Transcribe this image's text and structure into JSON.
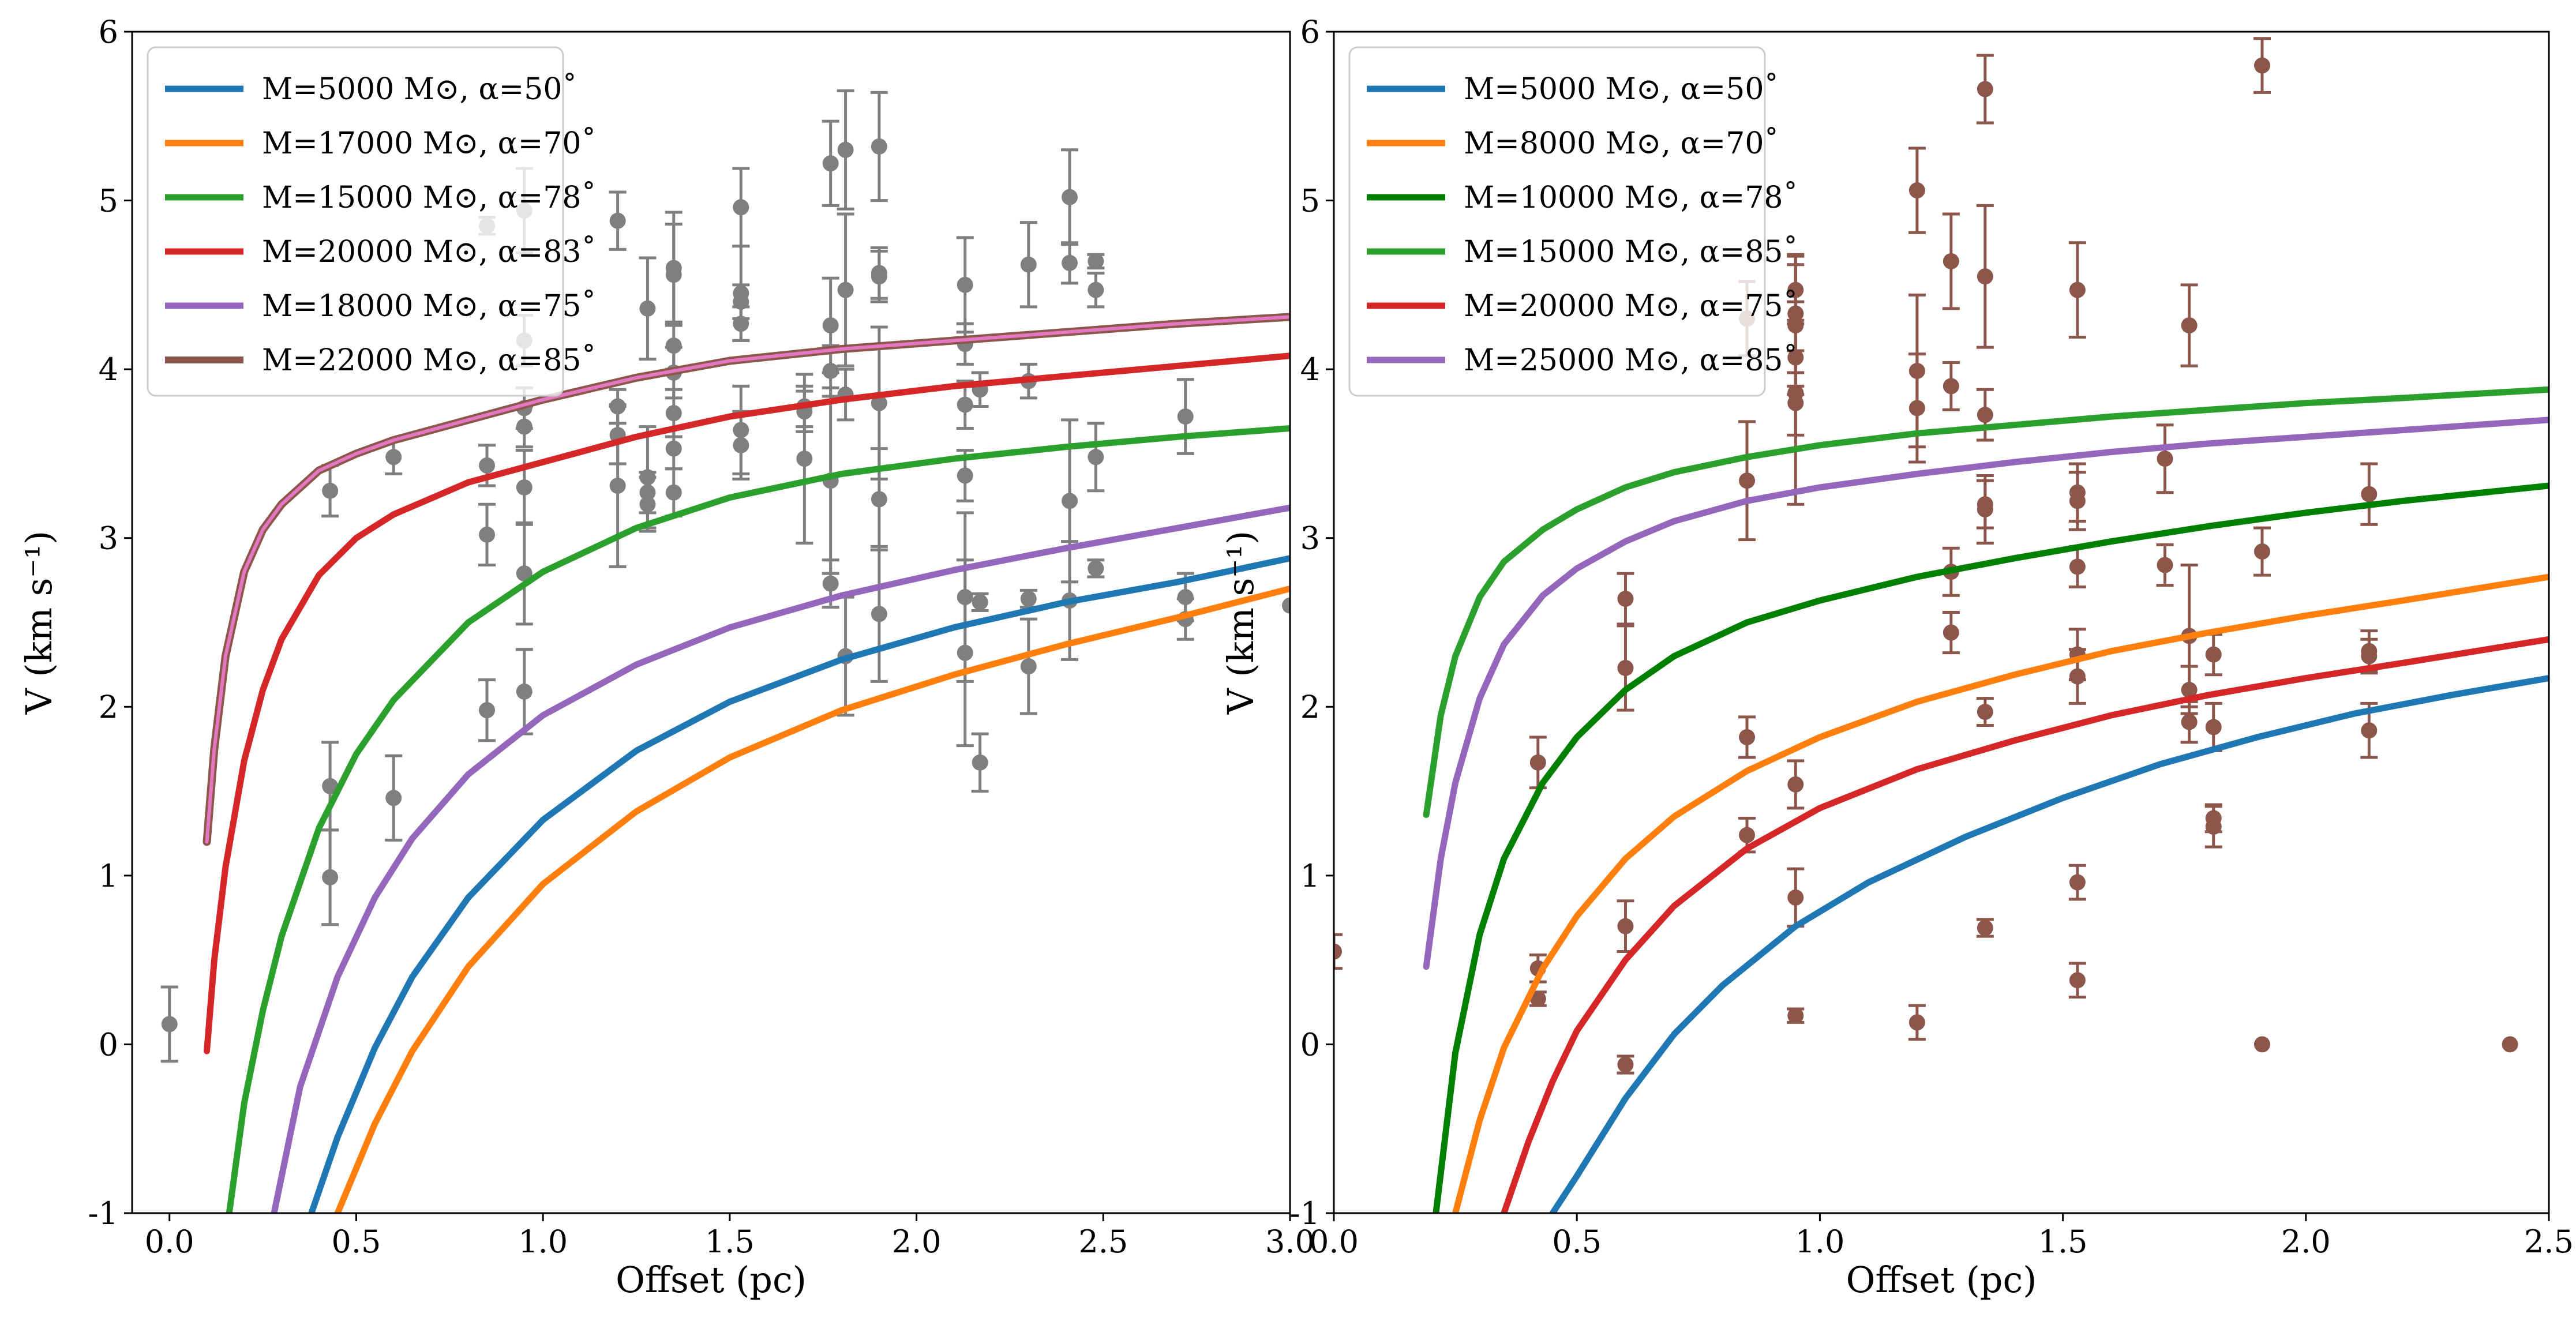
{
  "chart_data": [
    {
      "type": "line",
      "xlabel": "Offset (pc)",
      "ylabel": "V (km s⁻¹)",
      "xlim": [
        -0.1,
        3.0
      ],
      "ylim": [
        -1,
        6
      ],
      "xticks": [
        0.0,
        0.5,
        1.0,
        1.5,
        2.0,
        2.5,
        3.0
      ],
      "xtick_labels": [
        "0.0",
        "0.5",
        "1.0",
        "1.5",
        "2.0",
        "2.5",
        "3.0"
      ],
      "yticks": [
        -1,
        0,
        1,
        2,
        3,
        4,
        5,
        6
      ],
      "ytick_labels": [
        "-1",
        "0",
        "1",
        "2",
        "3",
        "4",
        "5",
        "6"
      ],
      "legend_position": "top-left",
      "series": [
        {
          "name": "M=5000 M⊙, α=50˚",
          "color": "#1f77b4",
          "outline": false,
          "x": [
            0.38,
            0.45,
            0.55,
            0.65,
            0.8,
            1.0,
            1.25,
            1.5,
            1.8,
            2.1,
            2.4,
            2.7,
            3.0
          ],
          "y": [
            -1.0,
            -0.55,
            -0.02,
            0.4,
            0.87,
            1.33,
            1.74,
            2.03,
            2.28,
            2.47,
            2.62,
            2.74,
            2.88
          ]
        },
        {
          "name": "M=17000 M⊙, α=70˚",
          "color": "#ff7f0e",
          "outline": false,
          "x": [
            0.45,
            0.55,
            0.65,
            0.8,
            1.0,
            1.25,
            1.5,
            1.8,
            2.1,
            2.4,
            2.7,
            3.0
          ],
          "y": [
            -1.0,
            -0.47,
            -0.04,
            0.46,
            0.95,
            1.38,
            1.7,
            1.98,
            2.19,
            2.37,
            2.53,
            2.7
          ]
        },
        {
          "name": "M=15000 M⊙, α=78˚",
          "color": "#2ca02c",
          "outline": false,
          "x": [
            0.16,
            0.2,
            0.25,
            0.3,
            0.4,
            0.5,
            0.6,
            0.8,
            1.0,
            1.25,
            1.5,
            1.8,
            2.1,
            2.4,
            2.7,
            3.0
          ],
          "y": [
            -1.0,
            -0.35,
            0.2,
            0.64,
            1.28,
            1.72,
            2.04,
            2.5,
            2.8,
            3.06,
            3.24,
            3.38,
            3.47,
            3.54,
            3.6,
            3.65
          ]
        },
        {
          "name": "M=20000 M⊙, α=83˚",
          "color": "#d62728",
          "outline": false,
          "x": [
            0.1,
            0.12,
            0.15,
            0.2,
            0.25,
            0.3,
            0.4,
            0.5,
            0.6,
            0.8,
            1.0,
            1.25,
            1.5,
            1.8,
            2.1,
            2.4,
            2.7,
            3.0
          ],
          "y": [
            -0.04,
            0.5,
            1.05,
            1.68,
            2.1,
            2.4,
            2.78,
            3.0,
            3.14,
            3.33,
            3.45,
            3.6,
            3.72,
            3.82,
            3.9,
            3.96,
            4.02,
            4.08
          ]
        },
        {
          "name": "M=18000 M⊙, α=75˚",
          "color": "#9467bd",
          "outline": false,
          "x": [
            0.28,
            0.35,
            0.45,
            0.55,
            0.65,
            0.8,
            1.0,
            1.25,
            1.5,
            1.8,
            2.1,
            2.4,
            2.7,
            3.0
          ],
          "y": [
            -1.0,
            -0.25,
            0.4,
            0.87,
            1.22,
            1.6,
            1.95,
            2.25,
            2.47,
            2.66,
            2.81,
            2.94,
            3.06,
            3.18
          ]
        },
        {
          "name": "M=22000 M⊙, α=85˚",
          "color": "#e377c2",
          "outline": true,
          "outline_color": "#8c564b",
          "x": [
            0.1,
            0.12,
            0.15,
            0.2,
            0.25,
            0.3,
            0.4,
            0.5,
            0.6,
            0.8,
            1.0,
            1.25,
            1.5,
            1.8,
            2.1,
            2.4,
            2.7,
            3.0
          ],
          "y": [
            1.2,
            1.75,
            2.3,
            2.8,
            3.05,
            3.2,
            3.4,
            3.5,
            3.58,
            3.7,
            3.82,
            3.95,
            4.05,
            4.12,
            4.17,
            4.22,
            4.27,
            4.31
          ]
        }
      ],
      "points": {
        "color": "#7f7f7f",
        "x": [
          0.0,
          0.43,
          0.43,
          0.43,
          0.6,
          0.6,
          0.85,
          0.85,
          0.85,
          0.85,
          0.95,
          0.95,
          0.95,
          0.95,
          0.95,
          0.95,
          0.95,
          1.2,
          1.2,
          1.2,
          1.2,
          1.28,
          1.28,
          1.28,
          1.28,
          1.35,
          1.35,
          1.35,
          1.35,
          1.35,
          1.35,
          1.35,
          1.53,
          1.53,
          1.53,
          1.53,
          1.53,
          1.53,
          1.7,
          1.7,
          1.7,
          1.77,
          1.77,
          1.77,
          1.77,
          1.77,
          1.81,
          1.81,
          1.81,
          1.81,
          1.9,
          1.9,
          1.9,
          1.9,
          1.9,
          1.9,
          2.13,
          2.13,
          2.13,
          2.13,
          2.13,
          2.13,
          2.17,
          2.17,
          2.17,
          2.3,
          2.3,
          2.3,
          2.3,
          2.41,
          2.41,
          2.41,
          2.41,
          2.48,
          2.48,
          2.48,
          2.48,
          2.72,
          2.72,
          2.72,
          3.0
        ],
        "y": [
          0.12,
          3.28,
          1.53,
          0.99,
          3.48,
          1.46,
          3.43,
          3.02,
          1.98,
          4.85,
          4.94,
          4.17,
          3.77,
          3.66,
          3.3,
          2.79,
          2.09,
          4.88,
          3.78,
          3.61,
          3.31,
          4.36,
          3.36,
          3.27,
          3.2,
          4.6,
          4.56,
          4.14,
          3.98,
          3.74,
          3.53,
          3.27,
          4.96,
          4.45,
          4.4,
          4.27,
          3.64,
          3.55,
          3.78,
          3.75,
          3.47,
          5.22,
          4.26,
          3.99,
          3.34,
          2.73,
          5.3,
          4.47,
          3.85,
          2.3,
          5.32,
          4.57,
          4.55,
          3.8,
          3.23,
          2.55,
          4.5,
          4.15,
          3.79,
          3.37,
          2.65,
          2.32,
          3.88,
          2.62,
          1.67,
          4.62,
          3.93,
          2.64,
          2.24,
          5.02,
          4.63,
          3.22,
          2.63,
          4.64,
          4.47,
          3.48,
          2.82,
          3.72,
          2.65,
          2.52,
          2.6
        ],
        "err": [
          0.22,
          0.15,
          0.26,
          0.28,
          0.1,
          0.25,
          0.12,
          0.18,
          0.18,
          0.05,
          0.25,
          0.15,
          0.12,
          0.12,
          0.22,
          0.3,
          0.25,
          0.17,
          0.1,
          0.17,
          0.48,
          0.3,
          0.3,
          0.12,
          0.16,
          0.33,
          0.3,
          0.14,
          0.15,
          0.14,
          0.12,
          0.14,
          0.23,
          0.28,
          0.1,
          0.1,
          0.26,
          0.2,
          0.12,
          0.12,
          0.5,
          0.25,
          0.28,
          0.15,
          0.55,
          0.14,
          0.35,
          0.45,
          0.15,
          0.35,
          0.32,
          0.15,
          0.15,
          0.45,
          0.3,
          0.4,
          0.28,
          0.12,
          0.14,
          0.15,
          0.5,
          0.55,
          0.1,
          0.05,
          0.17,
          0.25,
          0.1,
          0.05,
          0.28,
          0.28,
          0.12,
          0.48,
          0.35,
          0.04,
          0.1,
          0.2,
          0.05,
          0.22,
          0.14,
          0.12,
          0.0
        ]
      }
    },
    {
      "type": "line",
      "xlabel": "Offset (pc)",
      "ylabel": "V (km s⁻¹)",
      "xlim": [
        0.0,
        2.5
      ],
      "ylim": [
        -1,
        6
      ],
      "xticks": [
        0.0,
        0.5,
        1.0,
        1.5,
        2.0,
        2.5
      ],
      "xtick_labels": [
        "0.0",
        "0.5",
        "1.0",
        "1.5",
        "2.0",
        "2.5"
      ],
      "yticks": [
        -1,
        0,
        1,
        2,
        3,
        4,
        5,
        6
      ],
      "ytick_labels": [
        "-1",
        "0",
        "1",
        "2",
        "3",
        "4",
        "5",
        "6"
      ],
      "legend_position": "top-left",
      "series": [
        {
          "name": "M=5000 M⊙, α=50˚",
          "color": "#1f77b4",
          "outline": false,
          "x": [
            0.45,
            0.5,
            0.6,
            0.7,
            0.8,
            0.95,
            1.1,
            1.3,
            1.5,
            1.7,
            1.9,
            2.1,
            2.3,
            2.5
          ],
          "y": [
            -1.0,
            -0.78,
            -0.32,
            0.06,
            0.35,
            0.7,
            0.96,
            1.23,
            1.46,
            1.66,
            1.82,
            1.96,
            2.07,
            2.17
          ]
        },
        {
          "name": "M=8000 M⊙, α=70˚",
          "color": "#ff7f0e",
          "outline": false,
          "x": [
            0.25,
            0.3,
            0.35,
            0.43,
            0.5,
            0.6,
            0.7,
            0.85,
            1.0,
            1.2,
            1.4,
            1.6,
            1.8,
            2.0,
            2.2,
            2.5
          ],
          "y": [
            -1.0,
            -0.45,
            -0.02,
            0.45,
            0.76,
            1.1,
            1.35,
            1.62,
            1.82,
            2.03,
            2.19,
            2.33,
            2.44,
            2.54,
            2.63,
            2.77
          ]
        },
        {
          "name": "M=10000 M⊙, α=78˚",
          "color": "#008000",
          "outline": false,
          "x": [
            0.21,
            0.25,
            0.3,
            0.35,
            0.43,
            0.5,
            0.6,
            0.7,
            0.85,
            1.0,
            1.2,
            1.4,
            1.6,
            1.8,
            2.0,
            2.2,
            2.5
          ],
          "y": [
            -1.0,
            -0.05,
            0.65,
            1.1,
            1.55,
            1.82,
            2.1,
            2.3,
            2.5,
            2.63,
            2.77,
            2.88,
            2.98,
            3.07,
            3.15,
            3.22,
            3.31
          ]
        },
        {
          "name": "M=15000 M⊙, α=85˚",
          "color": "#2ca02c",
          "outline": false,
          "x": [
            0.19,
            0.22,
            0.25,
            0.3,
            0.35,
            0.43,
            0.5,
            0.6,
            0.7,
            0.85,
            1.0,
            1.2,
            1.4,
            1.6,
            1.8,
            2.0,
            2.2,
            2.5
          ],
          "y": [
            1.36,
            1.95,
            2.3,
            2.65,
            2.86,
            3.05,
            3.17,
            3.3,
            3.39,
            3.48,
            3.55,
            3.62,
            3.67,
            3.72,
            3.76,
            3.8,
            3.83,
            3.88
          ]
        },
        {
          "name": "M=20000 M⊙, α=75˚",
          "color": "#d62728",
          "outline": false,
          "x": [
            0.35,
            0.4,
            0.45,
            0.5,
            0.6,
            0.7,
            0.85,
            1.0,
            1.2,
            1.4,
            1.6,
            1.8,
            2.0,
            2.2,
            2.5
          ],
          "y": [
            -1.0,
            -0.58,
            -0.22,
            0.08,
            0.5,
            0.82,
            1.16,
            1.4,
            1.63,
            1.8,
            1.95,
            2.07,
            2.17,
            2.26,
            2.4
          ]
        },
        {
          "name": "M=25000 M⊙, α=85˚",
          "color": "#9467bd",
          "outline": false,
          "x": [
            0.19,
            0.22,
            0.25,
            0.3,
            0.35,
            0.43,
            0.5,
            0.6,
            0.7,
            0.85,
            1.0,
            1.2,
            1.4,
            1.6,
            1.8,
            2.0,
            2.2,
            2.5
          ],
          "y": [
            0.46,
            1.1,
            1.55,
            2.05,
            2.37,
            2.66,
            2.82,
            2.98,
            3.1,
            3.22,
            3.3,
            3.38,
            3.45,
            3.51,
            3.56,
            3.6,
            3.64,
            3.7
          ]
        }
      ],
      "points": {
        "color": "#8c564b",
        "x": [
          0.0,
          0.42,
          0.42,
          0.42,
          0.6,
          0.6,
          0.6,
          0.6,
          0.85,
          0.85,
          0.85,
          0.85,
          0.95,
          0.95,
          0.95,
          0.95,
          0.95,
          0.95,
          0.95,
          0.95,
          0.95,
          1.2,
          1.2,
          1.2,
          1.2,
          1.27,
          1.27,
          1.27,
          1.27,
          1.34,
          1.34,
          1.34,
          1.34,
          1.34,
          1.34,
          1.34,
          1.53,
          1.53,
          1.53,
          1.53,
          1.53,
          1.53,
          1.53,
          1.53,
          1.71,
          1.71,
          1.76,
          1.76,
          1.76,
          1.76,
          1.81,
          1.81,
          1.81,
          1.81,
          1.91,
          1.91,
          2.13,
          2.13,
          2.13,
          2.13,
          2.42,
          1.91
        ],
        "y": [
          0.55,
          1.67,
          0.45,
          0.27,
          2.64,
          2.23,
          0.7,
          -0.12,
          4.3,
          3.34,
          1.82,
          1.24,
          4.47,
          4.33,
          3.86,
          3.8,
          1.54,
          0.87,
          0.17,
          4.26,
          4.07,
          3.77,
          0.13,
          5.06,
          3.99,
          2.8,
          2.44,
          4.64,
          3.9,
          3.73,
          3.2,
          3.17,
          1.97,
          0.69,
          5.66,
          4.55,
          4.47,
          3.27,
          3.22,
          2.18,
          0.96,
          0.38,
          2.83,
          2.31,
          3.47,
          2.84,
          2.1,
          1.91,
          4.26,
          2.42,
          2.31,
          1.34,
          1.88,
          1.29,
          5.8,
          2.92,
          2.33,
          2.3,
          1.86,
          3.26,
          0.0,
          0.0
        ],
        "err": [
          0.1,
          0.15,
          0.08,
          0.04,
          0.15,
          0.25,
          0.15,
          0.05,
          0.22,
          0.35,
          0.12,
          0.1,
          0.2,
          0.35,
          0.25,
          0.6,
          0.14,
          0.17,
          0.04,
          0.36,
          0.22,
          0.32,
          0.1,
          0.25,
          0.45,
          0.14,
          0.12,
          0.28,
          0.14,
          0.15,
          0.14,
          0.2,
          0.08,
          0.05,
          0.2,
          0.42,
          0.28,
          0.17,
          0.17,
          0.16,
          0.1,
          0.1,
          0.12,
          0.15,
          0.2,
          0.12,
          0.14,
          0.12,
          0.24,
          0.42,
          0.12,
          0.08,
          0.14,
          0.12,
          0.16,
          0.14,
          0.12,
          0.1,
          0.16,
          0.18,
          0.0,
          0.0
        ]
      }
    }
  ]
}
